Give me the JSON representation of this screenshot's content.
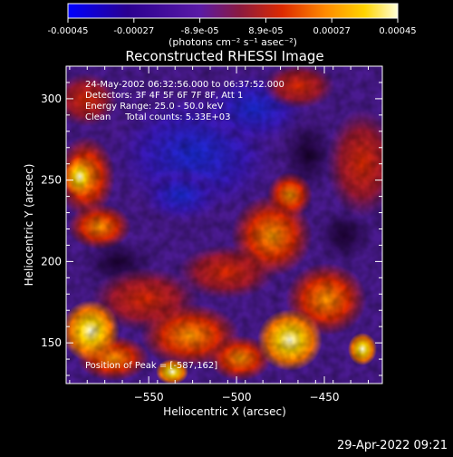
{
  "chart_data": {
    "type": "heatmap",
    "title": "Reconstructed RHESSI Image",
    "xlabel": "Heliocentric X (arcsec)",
    "ylabel": "Heliocentric Y (arcsec)",
    "x_ticks": [
      -550,
      -500,
      -450
    ],
    "y_ticks": [
      150,
      200,
      250,
      300
    ],
    "xlim": [
      -597,
      -417
    ],
    "ylim": [
      125,
      320
    ],
    "colorbar": {
      "ticks": [
        "-0.00045",
        "-0.00027",
        "-8.9e-05",
        "8.9e-05",
        "0.00027",
        "0.00045"
      ],
      "unit_label": "(photons cm⁻² s⁻¹ asec⁻²)",
      "range": [
        -0.00045,
        0.00045
      ],
      "colors": [
        "#0000ff",
        "#2a0090",
        "#5a1aa6",
        "#8a1a40",
        "#dd2a00",
        "#ff8a00",
        "#ffd400",
        "#ffffd8"
      ]
    },
    "annotations": [
      "24-May-2002 06:32:56.000 to 06:37:52.000",
      "Detectors: 3F 4F 5F 6F 7F 8F, Att 1",
      "Energy Range: 25.0 - 50.0 keV",
      "Clean     Total counts: 5.33E+03"
    ],
    "peak_label": "Position of Peak = [-587,162]",
    "peak_position": [
      -587,
      162
    ]
  },
  "timestamp": "29-Apr-2022 09:21"
}
